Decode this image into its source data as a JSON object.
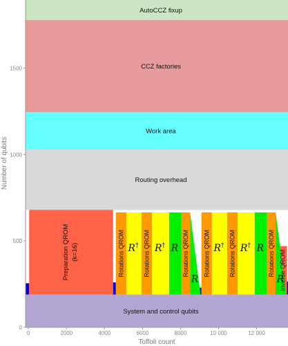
{
  "chart_data": {
    "type": "area",
    "title": "",
    "xlabel": "Toffoli count",
    "ylabel": "Number of qubits",
    "xlim": [
      -150,
      13650
    ],
    "ylim": [
      0,
      1895
    ],
    "xticks": [
      0,
      2000,
      4000,
      6000,
      8000,
      10000,
      12000
    ],
    "xtick_labels": [
      "0",
      "2000",
      "4000",
      "6000",
      "8000",
      "10 000",
      "12 000"
    ],
    "yticks": [
      0,
      500,
      1000,
      1500
    ],
    "ytick_labels": [
      "0",
      "500",
      "1000",
      "1500"
    ],
    "colors": {
      "system": "#b3a5d4",
      "routing": "#d9d9d9",
      "work": "#66ffff",
      "factories": "#e79a9a",
      "fixup": "#cce6c4",
      "qrom": "#ff6347",
      "rot_qrom": "#ff9900",
      "r_dagger": "#ffff00",
      "r": "#00ee00",
      "blue": "#0000dd"
    },
    "bands": [
      {
        "name": "system",
        "label": "System and control qubits",
        "y0": 0,
        "y1": 190,
        "color": "#b3a5d4"
      },
      {
        "name": "routing",
        "label": "Routing overhead",
        "y0": 680,
        "y1": 1030,
        "color": "#d9d9d9"
      },
      {
        "name": "work",
        "label": "Work area",
        "y0": 1030,
        "y1": 1245,
        "color": "#66ffff"
      },
      {
        "name": "factories",
        "label": "CCZ factories",
        "y0": 1245,
        "y1": 1780,
        "color": "#e79a9a"
      },
      {
        "name": "fixup",
        "label": "AutoCCZ fixup",
        "y0": 1780,
        "y1": 1895,
        "color": "#cce6c4"
      }
    ],
    "blocks": [
      {
        "x0": 40,
        "x1": 4450,
        "y0": 190,
        "y1": 680,
        "color": "#ff6347",
        "label": "Preparation QROM",
        "label2": "(k=16)",
        "kind": "qrom"
      },
      {
        "x0": 4600,
        "x1": 5150,
        "y0": 190,
        "y1": 665,
        "color": "#ff9900",
        "label": "Rotations QROM",
        "kind": "rot"
      },
      {
        "x0": 5150,
        "x1": 5950,
        "y0": 190,
        "y1": 665,
        "color": "#ffff00",
        "label": "R",
        "sup": "†",
        "kind": "r"
      },
      {
        "x0": 5950,
        "x1": 6500,
        "y0": 190,
        "y1": 665,
        "color": "#ff9900",
        "label": "Rotations QROM",
        "kind": "rot"
      },
      {
        "x0": 6500,
        "x1": 7400,
        "y0": 190,
        "y1": 665,
        "color": "#ffff00",
        "label": "R",
        "sup": "†",
        "kind": "r"
      },
      {
        "x0": 7400,
        "x1": 8050,
        "y0": 190,
        "y1": 665,
        "color": "#00ee00",
        "label": "R",
        "kind": "r"
      },
      {
        "x0": 8050,
        "x1": 8500,
        "y0": 190,
        "y1": 665,
        "color": "#ff9900",
        "label": "Rotations QROM",
        "kind": "rot"
      },
      {
        "x0": 9100,
        "x1": 9650,
        "y0": 190,
        "y1": 665,
        "color": "#ff9900",
        "label": "Rotations QROM",
        "kind": "rot"
      },
      {
        "x0": 9650,
        "x1": 10450,
        "y0": 190,
        "y1": 665,
        "color": "#ffff00",
        "label": "R",
        "sup": "†",
        "kind": "r"
      },
      {
        "x0": 10450,
        "x1": 11000,
        "y0": 190,
        "y1": 665,
        "color": "#ff9900",
        "label": "Rotations QROM",
        "kind": "rot"
      },
      {
        "x0": 11000,
        "x1": 11900,
        "y0": 190,
        "y1": 665,
        "color": "#ffff00",
        "label": "R",
        "sup": "†",
        "kind": "r"
      },
      {
        "x0": 11900,
        "x1": 12550,
        "y0": 190,
        "y1": 665,
        "color": "#00ee00",
        "label": "R",
        "kind": "r"
      },
      {
        "x0": 12550,
        "x1": 13000,
        "y0": 190,
        "y1": 665,
        "color": "#ff9900",
        "label": "Rotations QROM",
        "kind": "rot"
      },
      {
        "x0": 13150,
        "x1": 13600,
        "y0": 190,
        "y1": 470,
        "color": "#ff6347",
        "label": "Inverse QROM",
        "kind": "rot"
      }
    ],
    "ramps": [
      {
        "x0": 8500,
        "x1": 9050,
        "y_top": 665,
        "y_bottom": 190,
        "color": "#00ee00",
        "label": "R"
      },
      {
        "x0": 13000,
        "x1": 13550,
        "y_top": 665,
        "y_bottom": 190,
        "color": "#00ee00",
        "label": "R"
      }
    ],
    "spikes": [
      {
        "x0": -150,
        "x1": 40,
        "y0": 190,
        "y1": 255
      },
      {
        "x0": 4450,
        "x1": 4600,
        "y0": 190,
        "y1": 260
      },
      {
        "x0": 8960,
        "x1": 9100,
        "y0": 190,
        "y1": 230
      },
      {
        "x0": 13000,
        "x1": 13150,
        "y0": 190,
        "y1": 255
      },
      {
        "x0": 13450,
        "x1": 13650,
        "y0": 190,
        "y1": 265
      }
    ]
  }
}
